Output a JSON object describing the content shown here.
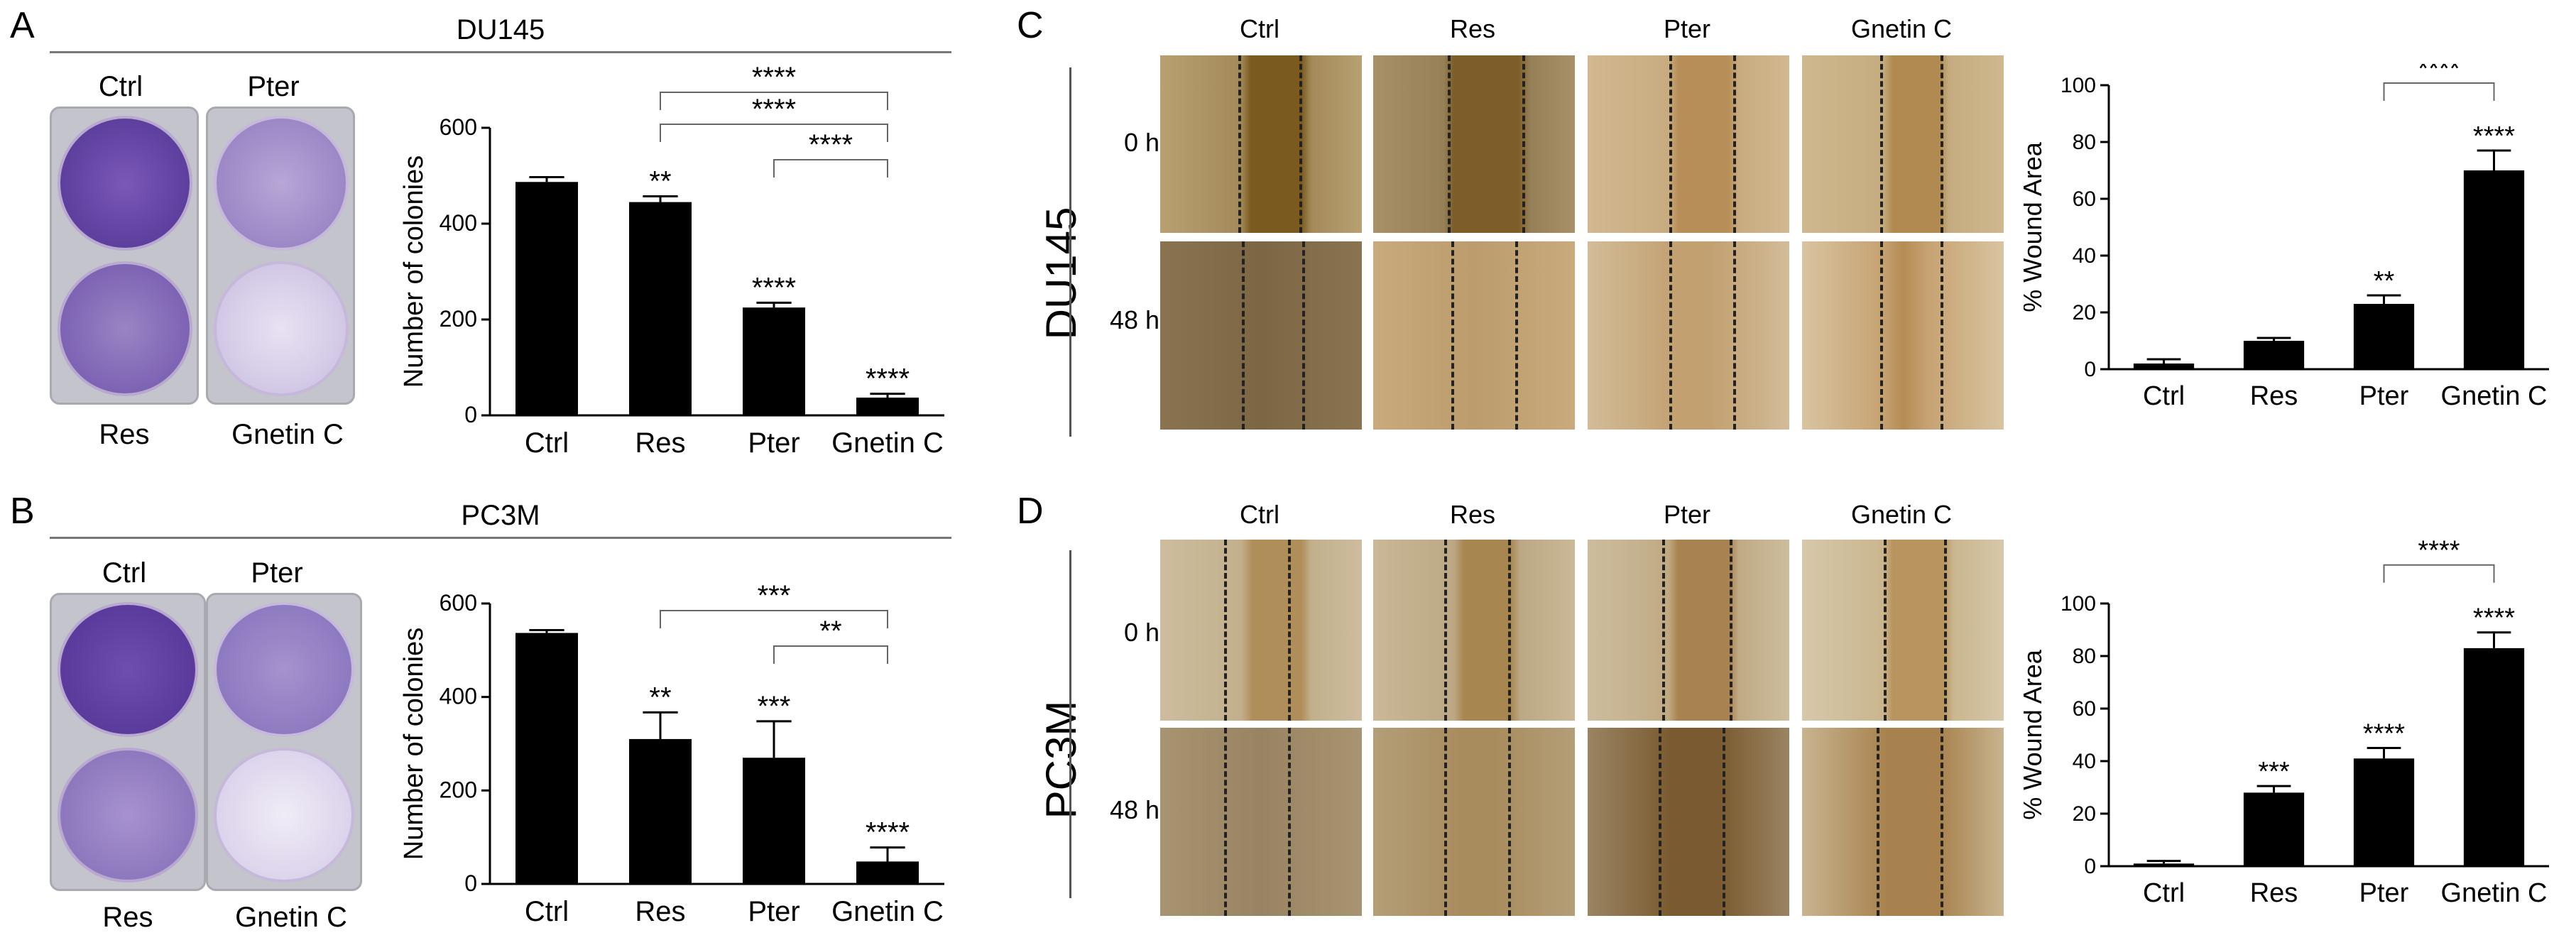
{
  "panel_letters": {
    "A": "A",
    "B": "B",
    "C": "C",
    "D": "D"
  },
  "panel_a": {
    "title": "DU145",
    "plate_labels": {
      "ctrl": "Ctrl",
      "pter": "Pter",
      "res": "Res",
      "gnetin": "Gnetin C"
    }
  },
  "panel_b": {
    "title": "PC3M",
    "plate_labels": {
      "ctrl": "Ctrl",
      "pter": "Pter",
      "res": "Res",
      "gnetin": "Gnetin C"
    }
  },
  "panel_c": {
    "cell_line": "DU145",
    "columns": [
      "Ctrl",
      "Res",
      "Pter",
      "Gnetin C"
    ],
    "rows": [
      "0 hr",
      "48 hr"
    ]
  },
  "panel_d": {
    "cell_line": "PC3M",
    "columns": [
      "Ctrl",
      "Res",
      "Pter",
      "Gnetin C"
    ],
    "rows": [
      "0 hr",
      "48 hr"
    ]
  },
  "colors": {
    "bar": "#000000",
    "plate_stain": "#6a4aa8",
    "brightfield": "#b8935c",
    "rule": "#777777"
  },
  "chart_data": [
    {
      "id": "A-colonies",
      "type": "bar",
      "categories": [
        "Ctrl",
        "Res",
        "Pter",
        "Gnetin C"
      ],
      "values": [
        487,
        445,
        225,
        37
      ],
      "errors": [
        10,
        12,
        10,
        8
      ],
      "ylabel": "Number of colonies",
      "ylim": [
        0,
        600
      ],
      "yticks": [
        0,
        200,
        400,
        600
      ],
      "bar_annotations": [
        "",
        "**",
        "****",
        "****"
      ],
      "comparisons": [
        {
          "from": 1,
          "to": 3,
          "label": "****",
          "level": 1
        },
        {
          "from": 1,
          "to": 3,
          "label": "****",
          "level": 2
        },
        {
          "from": 2,
          "to": 3,
          "label": "****",
          "level": 3
        }
      ]
    },
    {
      "id": "B-colonies",
      "type": "bar",
      "categories": [
        "Ctrl",
        "Res",
        "Pter",
        "Gnetin C"
      ],
      "values": [
        537,
        310,
        270,
        48
      ],
      "errors": [
        6,
        57,
        78,
        30
      ],
      "ylabel": "Number of colonies",
      "ylim": [
        0,
        600
      ],
      "yticks": [
        0,
        200,
        400,
        600
      ],
      "bar_annotations": [
        "",
        "**",
        "***",
        "****"
      ],
      "comparisons": [
        {
          "from": 1,
          "to": 3,
          "label": "***",
          "level": 1
        },
        {
          "from": 2,
          "to": 3,
          "label": "**",
          "level": 2
        }
      ]
    },
    {
      "id": "C-wound",
      "type": "bar",
      "categories": [
        "Ctrl",
        "Res",
        "Pter",
        "Gnetin C"
      ],
      "values": [
        2,
        10,
        23,
        70
      ],
      "errors": [
        1.5,
        1,
        3,
        7
      ],
      "ylabel": "% Wound Area",
      "ylim": [
        0,
        100
      ],
      "yticks": [
        0,
        20,
        40,
        60,
        80,
        100
      ],
      "bar_annotations": [
        "",
        "",
        "**",
        "****"
      ],
      "comparisons": [
        {
          "from": 2,
          "to": 3,
          "label": "****",
          "level": 1
        }
      ]
    },
    {
      "id": "D-wound",
      "type": "bar",
      "categories": [
        "Ctrl",
        "Res",
        "Pter",
        "Gnetin C"
      ],
      "values": [
        1,
        28,
        41,
        83
      ],
      "errors": [
        1,
        2.5,
        4,
        6
      ],
      "ylabel": "% Wound Area",
      "ylim": [
        0,
        100
      ],
      "yticks": [
        0,
        20,
        40,
        60,
        80,
        100
      ],
      "bar_annotations": [
        "",
        "***",
        "****",
        "****"
      ],
      "comparisons": [
        {
          "from": 2,
          "to": 3,
          "label": "****",
          "level": 1
        }
      ]
    }
  ]
}
